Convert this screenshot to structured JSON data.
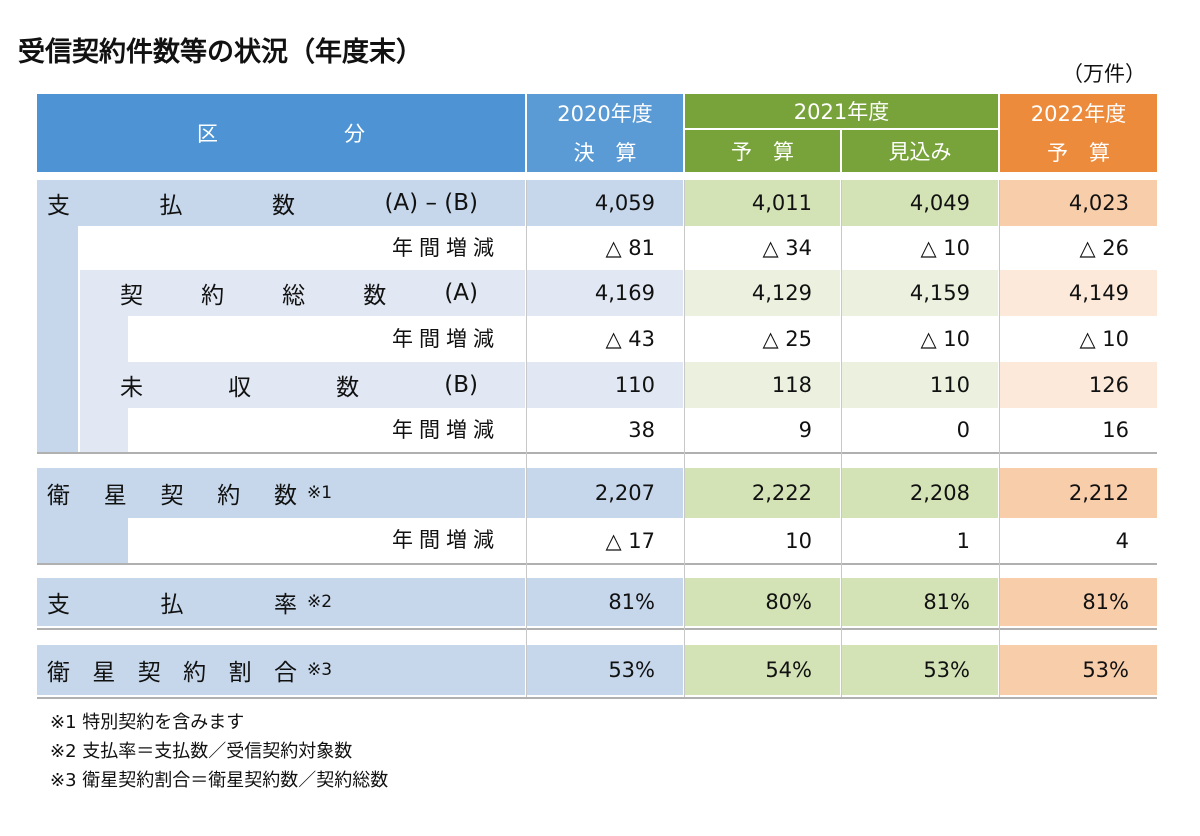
{
  "title": "受信契約件数等の状況（年度末）",
  "unit": "（万件）",
  "header": {
    "category": "区　　　　　　分",
    "y2020": "2020年度",
    "y2020_sub": "決　算",
    "y2021": "2021年度",
    "y2021_sub": [
      "予　算",
      "見込み"
    ],
    "y2022": "2022年度",
    "y2022_sub": "予　算"
  },
  "rows": [
    {
      "label": [
        "支",
        "払",
        "数",
        "(A) – (B)"
      ],
      "values": [
        "4,059",
        "4,011",
        "4,049",
        "4,023"
      ]
    },
    {
      "label": "年間増減",
      "values": [
        "△ 81",
        "△ 34",
        "△ 10",
        "△ 26"
      ]
    },
    {
      "label": [
        "契",
        "約",
        "総",
        "数",
        "(A)"
      ],
      "values": [
        "4,169",
        "4,129",
        "4,159",
        "4,149"
      ]
    },
    {
      "label": "年間増減",
      "values": [
        "△ 43",
        "△ 25",
        "△ 10",
        "△ 10"
      ]
    },
    {
      "label": [
        "未",
        "収",
        "数",
        "(B)"
      ],
      "values": [
        "110",
        "118",
        "110",
        "126"
      ]
    },
    {
      "label": "年間増減",
      "values": [
        "38",
        "9",
        "0",
        "16"
      ]
    },
    {
      "label": [
        "衛",
        "星",
        "契",
        "約",
        "数"
      ],
      "note": "※1",
      "values": [
        "2,207",
        "2,222",
        "2,208",
        "2,212"
      ]
    },
    {
      "label": "年間増減",
      "values": [
        "△ 17",
        "10",
        "1",
        "4"
      ]
    },
    {
      "label": [
        "支",
        "払",
        "率"
      ],
      "note": "※2",
      "values": [
        "81%",
        "80%",
        "81%",
        "81%"
      ]
    },
    {
      "label": [
        "衛",
        "星",
        "契",
        "約",
        "割",
        "合"
      ],
      "note": "※3",
      "values": [
        "53%",
        "54%",
        "53%",
        "53%"
      ]
    }
  ],
  "footnotes": [
    "※1 特別契約を含みます",
    "※2 支払率＝支払数／受信契約対象数",
    "※3 衛星契約割合＝衛星契約数／契約総数"
  ]
}
